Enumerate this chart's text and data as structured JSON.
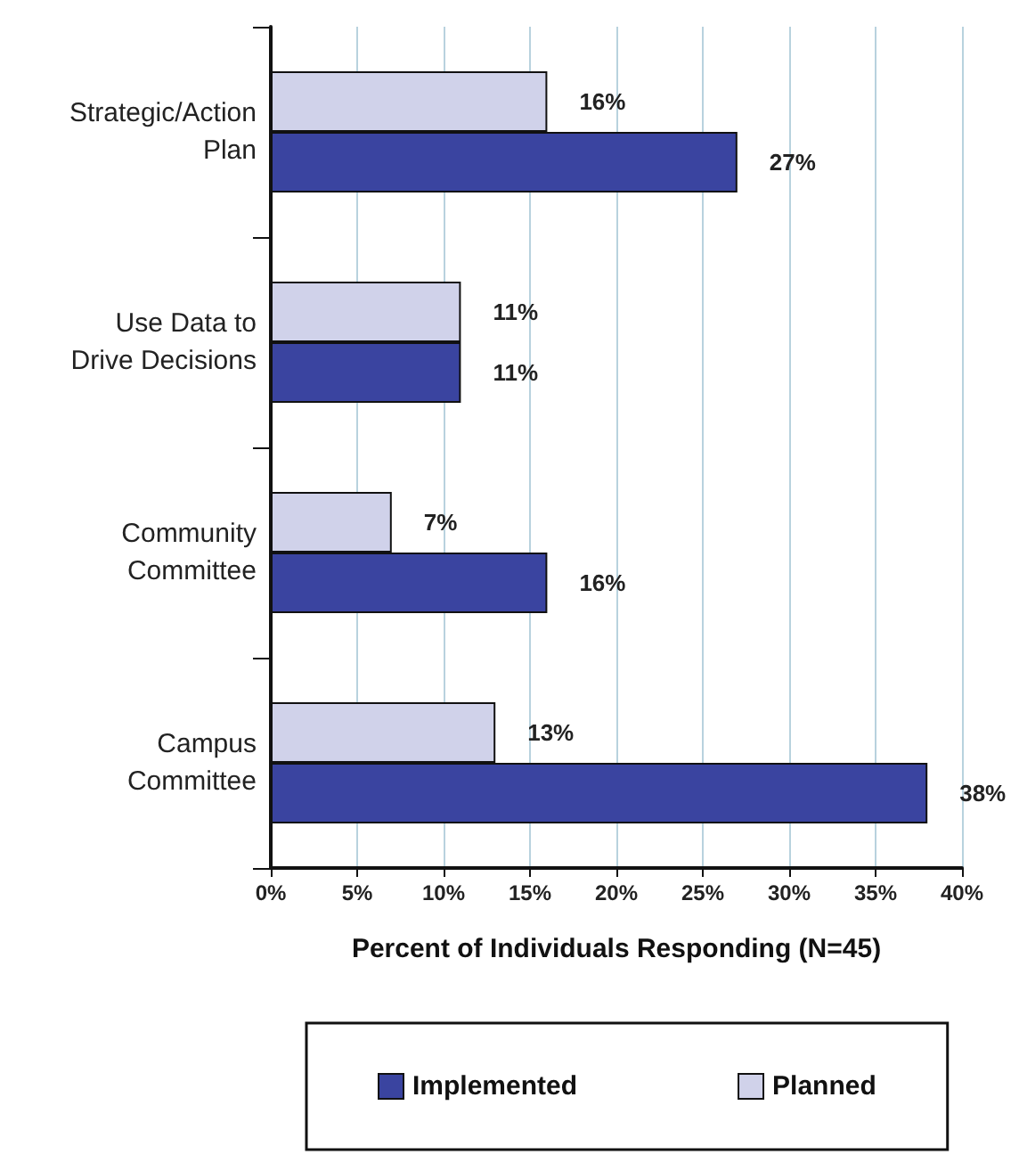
{
  "chart_data": {
    "type": "bar",
    "orientation": "horizontal",
    "xlabel": "Percent of Individuals Responding (N=45)",
    "categories": [
      "Strategic/Action\nPlan",
      "Use Data to\nDrive Decisions",
      "Community\nCommittee",
      "Campus\nCommittee"
    ],
    "series": [
      {
        "name": "Planned",
        "color": "#d0d2ea",
        "values": [
          16,
          11,
          7,
          13
        ],
        "value_labels": [
          "16%",
          "11%",
          "7%",
          "13%"
        ]
      },
      {
        "name": "Implemented",
        "color": "#3a44a0",
        "values": [
          27,
          11,
          16,
          38
        ],
        "value_labels": [
          "27%",
          "11%",
          "16%",
          "38%"
        ]
      }
    ],
    "xlim": [
      0,
      40
    ],
    "xticks": [
      {
        "value": 0,
        "label": "0%"
      },
      {
        "value": 5,
        "label": "5%"
      },
      {
        "value": 10,
        "label": "10%"
      },
      {
        "value": 15,
        "label": "15%"
      },
      {
        "value": 20,
        "label": "20%"
      },
      {
        "value": 25,
        "label": "25%"
      },
      {
        "value": 30,
        "label": "30%"
      },
      {
        "value": 35,
        "label": "35%"
      },
      {
        "value": 40,
        "label": "40%"
      }
    ],
    "grid": "x",
    "legend": "bottom"
  }
}
